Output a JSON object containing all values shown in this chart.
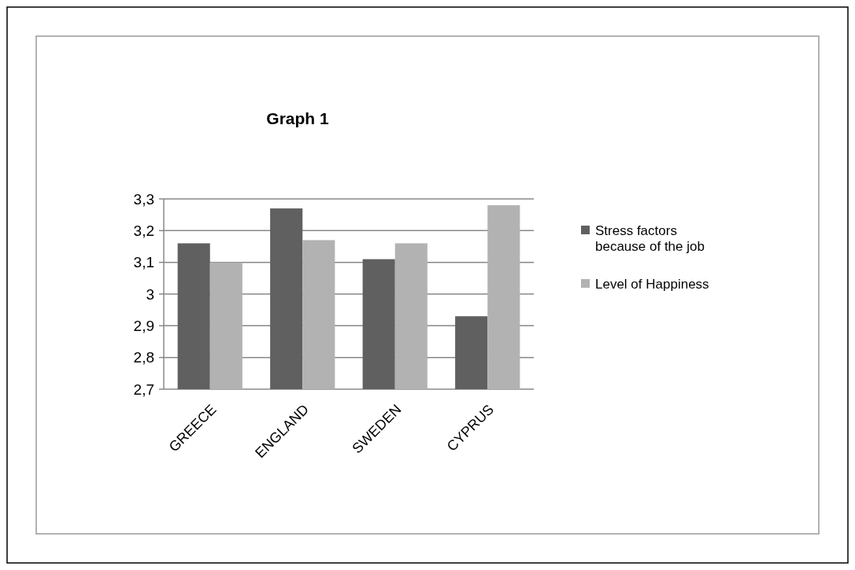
{
  "chart_data": {
    "type": "bar",
    "title": "Graph 1",
    "categories": [
      "GREECE",
      "ENGLAND",
      "SWEDEN",
      "CYPRUS"
    ],
    "series": [
      {
        "name": "Stress factors because of the job",
        "color": "#606060",
        "values": [
          3.16,
          3.27,
          3.11,
          2.93
        ]
      },
      {
        "name": "Level of Happiness",
        "color": "#b2b2b2",
        "values": [
          3.1,
          3.17,
          3.16,
          3.28
        ]
      }
    ],
    "ylim": [
      2.7,
      3.3
    ],
    "yticks": [
      {
        "value": 2.7,
        "label": "2,7"
      },
      {
        "value": 2.8,
        "label": "2,8"
      },
      {
        "value": 2.9,
        "label": "2,9"
      },
      {
        "value": 3,
        "label": "3"
      },
      {
        "value": 3.1,
        "label": "3,1"
      },
      {
        "value": 3.2,
        "label": "3,2"
      },
      {
        "value": 3.3,
        "label": "3,3"
      }
    ],
    "grid": "y",
    "legend": "right"
  }
}
